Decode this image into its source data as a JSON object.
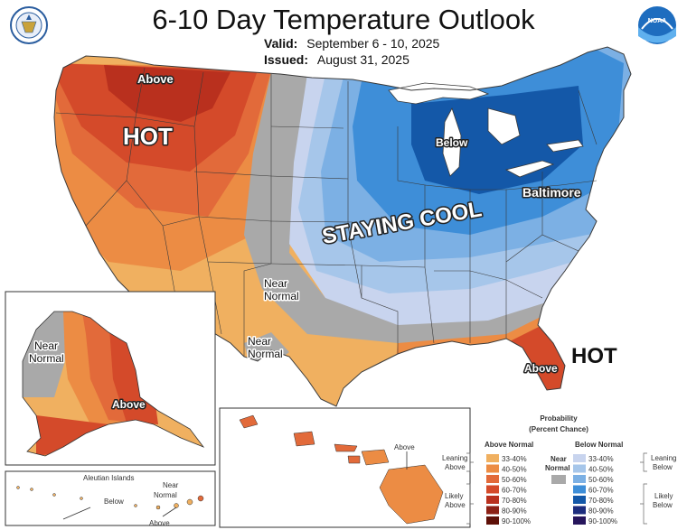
{
  "header": {
    "title": "6-10 Day Temperature Outlook",
    "valid_label": "Valid:",
    "valid_value": "September 6 - 10, 2025",
    "issued_label": "Issued:",
    "issued_value": "August 31, 2025"
  },
  "logos": {
    "left": "commerce-seal",
    "right": "noaa-logo",
    "right_text": "NOAA"
  },
  "map_labels": {
    "hot_west": "HOT",
    "hot_southeast": "HOT",
    "staying_cool": "STAYING COOL",
    "baltimore": "Baltimore",
    "above_northwest": "Above",
    "below_greatlakes": "Below",
    "near_normal_plains": "Near\nNormal",
    "near_normal_texas": "Near\nNormal",
    "above_florida": "Above"
  },
  "alaska_labels": {
    "near_normal": "Near\nNormal",
    "above": "Above"
  },
  "aleutian_labels": {
    "islands": "Aleutian Islands",
    "near_normal": "Near\nNormal",
    "below": "Below",
    "above": "Above"
  },
  "hawaii_labels": {
    "above": "Above"
  },
  "legend": {
    "title": "Probability",
    "subtitle": "(Percent Chance)",
    "above_header": "Above Normal",
    "below_header": "Below Normal",
    "near_label": "Near\nNormal",
    "leaning_above": "Leaning\nAbove",
    "likely_above": "Likely\nAbove",
    "leaning_below": "Leaning\nBelow",
    "likely_below": "Likely\nBelow",
    "above_bins": [
      {
        "label": "33-40%",
        "color": "#f0b060"
      },
      {
        "label": "40-50%",
        "color": "#ec8c44"
      },
      {
        "label": "50-60%",
        "color": "#e26a3a"
      },
      {
        "label": "60-70%",
        "color": "#d44a2a"
      },
      {
        "label": "70-80%",
        "color": "#b9301e"
      },
      {
        "label": "80-90%",
        "color": "#8c2015"
      },
      {
        "label": "90-100%",
        "color": "#5e1008"
      }
    ],
    "below_bins": [
      {
        "label": "33-40%",
        "color": "#c8d4ee"
      },
      {
        "label": "40-50%",
        "color": "#a6c6ea"
      },
      {
        "label": "50-60%",
        "color": "#7cb0e4"
      },
      {
        "label": "60-70%",
        "color": "#3e8ed8"
      },
      {
        "label": "70-80%",
        "color": "#1458a8"
      },
      {
        "label": "80-90%",
        "color": "#1d2d7e"
      },
      {
        "label": "90-100%",
        "color": "#26155c"
      }
    ],
    "near_color": "#a9a9a9"
  },
  "colors": {
    "above_33_40": "#f0b060",
    "above_40_50": "#ec8c44",
    "above_50_60": "#e26a3a",
    "above_60_70": "#d44a2a",
    "above_70_80": "#b9301e",
    "near": "#a9a9a9",
    "below_33_40": "#c8d4ee",
    "below_40_50": "#a6c6ea",
    "below_50_60": "#7cb0e4",
    "below_60_70": "#3e8ed8",
    "below_70_80": "#1458a8",
    "border": "#3a3a3a"
  }
}
